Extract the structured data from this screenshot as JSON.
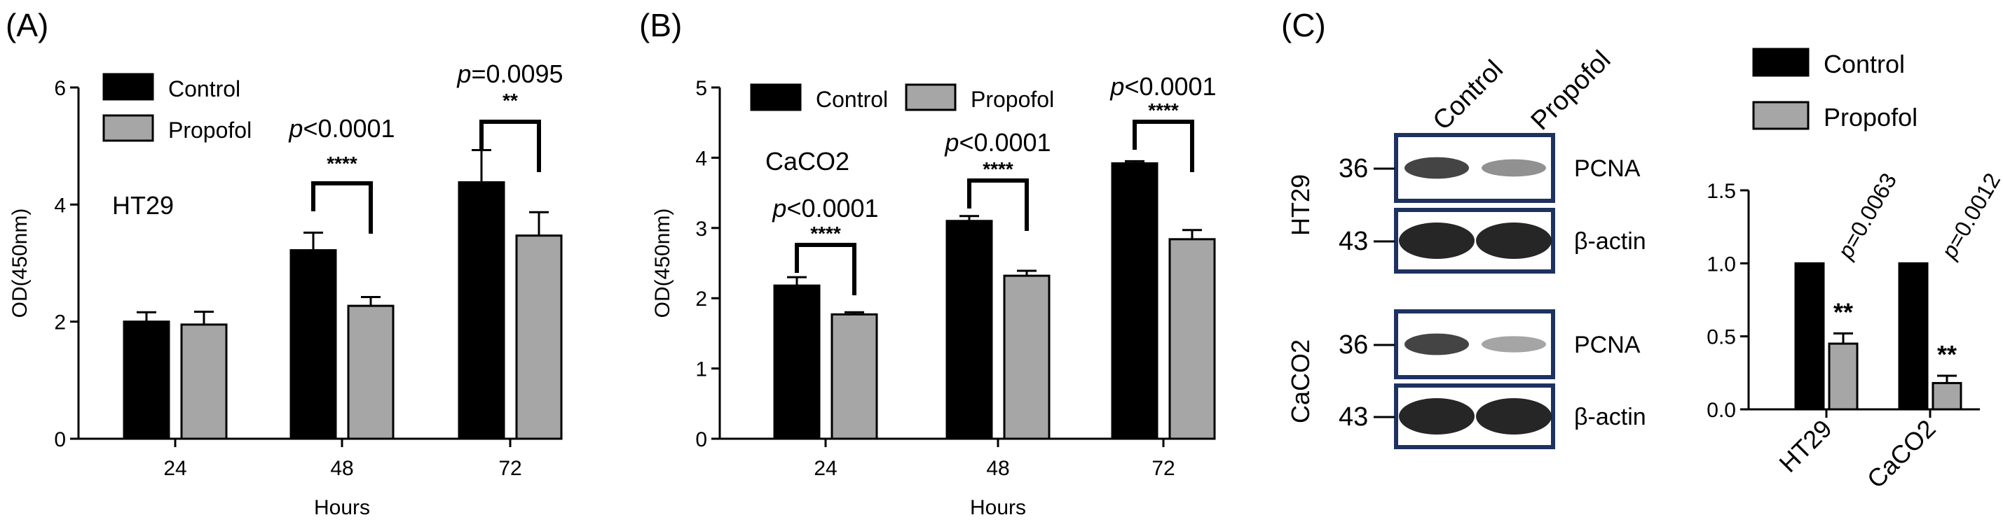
{
  "panels": {
    "a": {
      "letter": "(A)"
    },
    "b": {
      "letter": "(B)"
    },
    "c": {
      "letter": "(C)"
    }
  },
  "colors": {
    "control": "#000000",
    "propofol": "#a6a6a6",
    "blot_border": "#1e3260"
  },
  "chart_data": [
    {
      "id": "A",
      "type": "bar",
      "cell_line": "HT29",
      "xlabel": "Hours",
      "ylabel": "OD(450nm)",
      "ylim": [
        0,
        6
      ],
      "yticks": [
        0,
        2,
        4,
        6
      ],
      "categories": [
        "24",
        "48",
        "72"
      ],
      "legend": {
        "position": "top-left"
      },
      "series": [
        {
          "name": "Control",
          "values": [
            2.0,
            3.22,
            4.38
          ],
          "errors": [
            0.16,
            0.3,
            0.55
          ]
        },
        {
          "name": "Propofol",
          "values": [
            1.95,
            2.27,
            3.47
          ],
          "errors": [
            0.22,
            0.15,
            0.4
          ]
        }
      ],
      "significance": [
        {
          "category": "48",
          "p": "<0.0001",
          "stars": "****"
        },
        {
          "category": "72",
          "p": "=0.0095",
          "stars": "**"
        }
      ]
    },
    {
      "id": "B",
      "type": "bar",
      "cell_line": "CaCO2",
      "xlabel": "Hours",
      "ylabel": "OD(450nm)",
      "ylim": [
        0,
        5
      ],
      "yticks": [
        0,
        1,
        2,
        3,
        4,
        5
      ],
      "categories": [
        "24",
        "48",
        "72"
      ],
      "legend": {
        "position": "top"
      },
      "series": [
        {
          "name": "Control",
          "values": [
            2.18,
            3.1,
            3.92
          ],
          "errors": [
            0.12,
            0.07,
            0.03
          ]
        },
        {
          "name": "Propofol",
          "values": [
            1.77,
            2.32,
            2.84
          ],
          "errors": [
            0.03,
            0.07,
            0.13
          ]
        }
      ],
      "significance": [
        {
          "category": "24",
          "p": "<0.0001",
          "stars": "****"
        },
        {
          "category": "48",
          "p": "<0.0001",
          "stars": "****"
        },
        {
          "category": "72",
          "p": "<0.0001",
          "stars": "****"
        }
      ]
    },
    {
      "id": "C",
      "type": "bar",
      "xlabel": "",
      "ylabel": "",
      "ylim": [
        0,
        1.5
      ],
      "yticks": [
        "0.0",
        "0.5",
        "1.0",
        "1.5"
      ],
      "categories": [
        "HT29",
        "CaCO2"
      ],
      "legend": {
        "position": "top"
      },
      "series": [
        {
          "name": "Control",
          "values": [
            1.0,
            1.0
          ],
          "errors": [
            0,
            0
          ]
        },
        {
          "name": "Propofol",
          "values": [
            0.45,
            0.18
          ],
          "errors": [
            0.07,
            0.05
          ]
        }
      ],
      "significance": [
        {
          "category": "HT29",
          "p": "=0.0063",
          "stars": "**"
        },
        {
          "category": "CaCO2",
          "p": "=0.0012",
          "stars": "**"
        }
      ]
    }
  ],
  "blot": {
    "lanes": [
      "Control",
      "Propofol"
    ],
    "groups": [
      {
        "cell_line": "HT29",
        "rows": [
          {
            "protein": "PCNA",
            "mw": "36",
            "intensity": [
              0.85,
              0.45
            ]
          },
          {
            "protein": "β-actin",
            "mw": "43",
            "intensity": [
              1.0,
              1.0
            ]
          }
        ]
      },
      {
        "cell_line": "CaCO2",
        "rows": [
          {
            "protein": "PCNA",
            "mw": "36",
            "intensity": [
              0.85,
              0.35
            ]
          },
          {
            "protein": "β-actin",
            "mw": "43",
            "intensity": [
              1.0,
              1.0
            ]
          }
        ]
      }
    ]
  }
}
